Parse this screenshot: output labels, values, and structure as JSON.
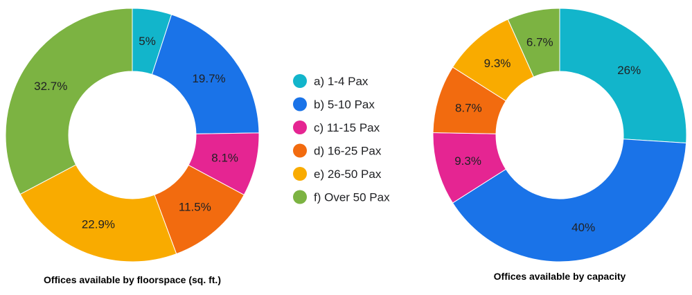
{
  "legend": {
    "items": [
      {
        "label": "a) 1-4 Pax",
        "color": "#12B5CB"
      },
      {
        "label": "b) 5-10 Pax",
        "color": "#1A73E8"
      },
      {
        "label": "c) 11-15 Pax",
        "color": "#E52592"
      },
      {
        "label": "d) 16-25 Pax",
        "color": "#F26B0F"
      },
      {
        "label": "e) 26-50 Pax",
        "color": "#F9AB00"
      },
      {
        "label": "f) Over 50 Pax",
        "color": "#7CB342"
      }
    ]
  },
  "chart_data": [
    {
      "type": "pie",
      "style": "donut",
      "title": "Offices available by floorspace (sq. ft.)",
      "categories": [
        "a) 1-4 Pax",
        "b) 5-10 Pax",
        "c) 11-15 Pax",
        "d) 16-25 Pax",
        "e) 26-50 Pax",
        "f) Over 50 Pax"
      ],
      "values": [
        5,
        19.7,
        8.1,
        11.5,
        22.9,
        32.7
      ],
      "data_labels": [
        "5%",
        "19.7%",
        "8.1%",
        "11.5%",
        "22.9%",
        "32.7%"
      ],
      "legend_placement": "center"
    },
    {
      "type": "pie",
      "style": "donut",
      "title": "Offices available by capacity",
      "categories": [
        "a) 1-4 Pax",
        "b) 5-10 Pax",
        "c) 11-15 Pax",
        "d) 16-25 Pax",
        "e) 26-50 Pax",
        "f) Over 50 Pax"
      ],
      "values": [
        26,
        40,
        9.3,
        8.7,
        9.3,
        6.7
      ],
      "data_labels": [
        "26%",
        "40%",
        "9.3%",
        "8.7%",
        "9.3%",
        "6.7%"
      ],
      "legend_placement": "center"
    }
  ]
}
